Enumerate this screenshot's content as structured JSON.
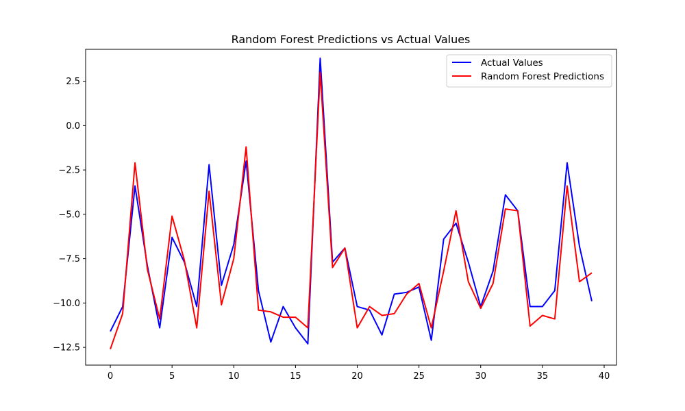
{
  "chart_data": {
    "type": "line",
    "title": "Random Forest Predictions vs Actual Values",
    "xlabel": "",
    "ylabel": "",
    "xlim": [
      -2,
      41
    ],
    "ylim": [
      -13.5,
      4.3
    ],
    "x_ticks": [
      0,
      5,
      10,
      15,
      20,
      25,
      30,
      35,
      40
    ],
    "y_ticks": [
      2.5,
      0.0,
      -2.5,
      -5.0,
      -7.5,
      -10.0,
      -12.5
    ],
    "y_tick_labels": [
      "2.5",
      "0.0",
      "−2.5",
      "−5.0",
      "−7.5",
      "−10.0",
      "−12.5"
    ],
    "grid": false,
    "legend_position": "top-right",
    "x": [
      0,
      1,
      2,
      3,
      4,
      5,
      6,
      7,
      8,
      9,
      10,
      11,
      12,
      13,
      14,
      15,
      16,
      17,
      18,
      19,
      20,
      21,
      22,
      23,
      24,
      25,
      26,
      27,
      28,
      29,
      30,
      31,
      32,
      33,
      34,
      35,
      36,
      37,
      38,
      39
    ],
    "series": [
      {
        "name": "Actual Values",
        "color": "#0000ff",
        "values": [
          -11.6,
          -10.2,
          -3.4,
          -7.9,
          -11.4,
          -6.3,
          -7.7,
          -10.2,
          -2.2,
          -9.0,
          -6.7,
          -2.0,
          -9.3,
          -12.2,
          -10.2,
          -11.4,
          -12.3,
          3.8,
          -7.7,
          -6.9,
          -10.2,
          -10.4,
          -11.8,
          -9.5,
          -9.4,
          -9.1,
          -12.1,
          -6.4,
          -5.5,
          -7.7,
          -10.2,
          -8.2,
          -3.9,
          -4.8,
          -10.2,
          -10.2,
          -9.3,
          -2.1,
          -6.8,
          -9.9
        ]
      },
      {
        "name": "Random Forest Predictions",
        "color": "#ff0000",
        "values": [
          -12.6,
          -10.6,
          -2.1,
          -8.1,
          -10.9,
          -5.1,
          -7.6,
          -11.4,
          -3.7,
          -10.1,
          -7.5,
          -1.2,
          -10.4,
          -10.5,
          -10.8,
          -10.8,
          -11.4,
          3.0,
          -8.0,
          -6.9,
          -11.4,
          -10.2,
          -10.7,
          -10.6,
          -9.5,
          -8.9,
          -11.4,
          -8.2,
          -4.8,
          -8.8,
          -10.3,
          -8.9,
          -4.7,
          -4.8,
          -11.3,
          -10.7,
          -10.9,
          -3.4,
          -8.8,
          -8.3
        ]
      }
    ]
  }
}
